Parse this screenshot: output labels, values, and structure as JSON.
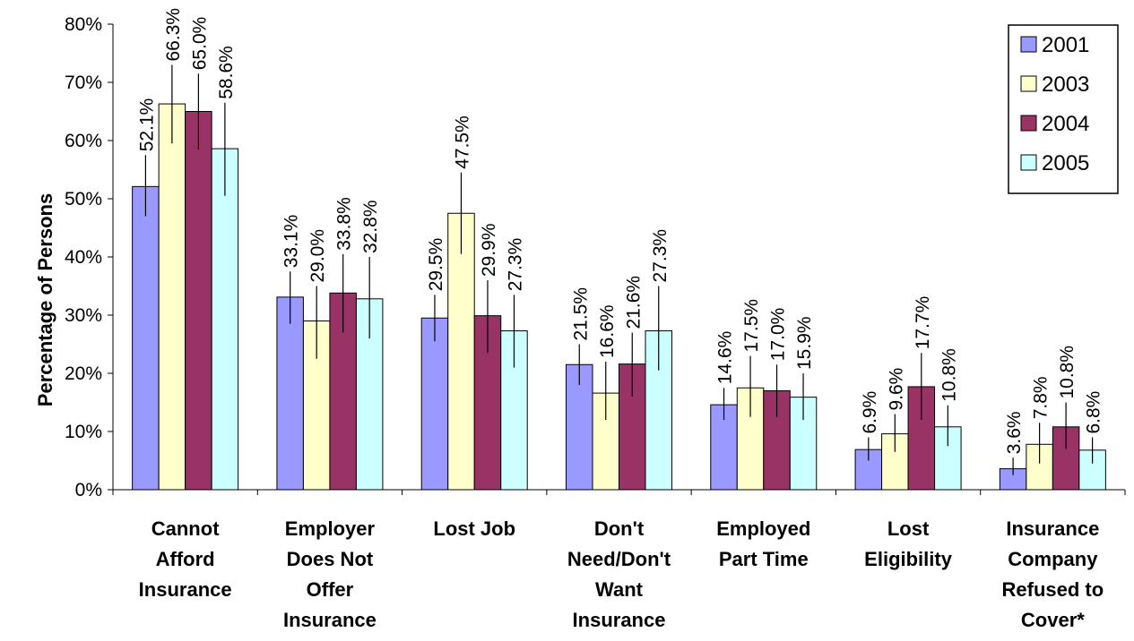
{
  "chart_data": {
    "type": "bar",
    "title": "",
    "xlabel": "",
    "ylabel": "Percentage of Persons",
    "ylim": [
      0,
      80
    ],
    "y_ticks": [
      "0%",
      "10%",
      "20%",
      "30%",
      "40%",
      "50%",
      "60%",
      "70%",
      "80%"
    ],
    "grid": false,
    "legend_position": "top-right",
    "error_bars": true,
    "categories": [
      [
        "Cannot",
        "Afford",
        "Insurance"
      ],
      [
        "Employer",
        "Does Not",
        "Offer",
        "Insurance"
      ],
      [
        "Lost Job"
      ],
      [
        "Don't",
        "Need/Don't",
        "Want",
        "Insurance"
      ],
      [
        "Employed",
        "Part Time"
      ],
      [
        "Lost",
        "Eligibility"
      ],
      [
        "Insurance",
        "Company",
        "Refused to",
        "Cover*"
      ]
    ],
    "series": [
      {
        "name": "2001",
        "color": "#9999ff",
        "values": [
          52.1,
          33.1,
          29.5,
          21.5,
          14.6,
          6.9,
          3.6
        ],
        "labels": [
          "52.1%",
          "33.1%",
          "29.5%",
          "21.5%",
          "14.6%",
          "6.9%",
          "3.6%"
        ],
        "error_low": [
          47.0,
          28.5,
          25.5,
          18.0,
          12.0,
          5.0,
          2.5
        ],
        "error_high": [
          57.5,
          37.5,
          33.5,
          25.0,
          17.5,
          9.0,
          5.5
        ]
      },
      {
        "name": "2003",
        "color": "#ffffcc",
        "values": [
          66.3,
          29.0,
          47.5,
          16.6,
          17.5,
          9.6,
          7.8
        ],
        "labels": [
          "66.3%",
          "29.0%",
          "47.5%",
          "16.6%",
          "17.5%",
          "9.6%",
          "7.8%"
        ],
        "error_low": [
          59.5,
          22.5,
          40.5,
          12.0,
          12.5,
          6.5,
          4.5
        ],
        "error_high": [
          73.0,
          35.0,
          54.5,
          22.0,
          23.0,
          13.0,
          11.5
        ]
      },
      {
        "name": "2004",
        "color": "#993366",
        "values": [
          65.0,
          33.8,
          29.9,
          21.6,
          17.0,
          17.7,
          10.8
        ],
        "labels": [
          "65.0%",
          "33.8%",
          "29.9%",
          "21.6%",
          "17.0%",
          "17.7%",
          "10.8%"
        ],
        "error_low": [
          58.5,
          27.0,
          23.5,
          16.0,
          12.5,
          12.0,
          7.0
        ],
        "error_high": [
          71.5,
          40.5,
          36.0,
          27.0,
          21.5,
          23.5,
          15.0
        ]
      },
      {
        "name": "2005",
        "color": "#ccffff",
        "values": [
          58.6,
          32.8,
          27.3,
          27.3,
          15.9,
          10.8,
          6.8
        ],
        "labels": [
          "58.6%",
          "32.8%",
          "27.3%",
          "27.3%",
          "15.9%",
          "10.8%",
          "6.8%"
        ],
        "error_low": [
          50.5,
          26.0,
          21.0,
          20.5,
          12.0,
          7.5,
          4.5
        ],
        "error_high": [
          66.5,
          40.0,
          33.5,
          35.0,
          20.0,
          14.5,
          9.0
        ]
      }
    ]
  }
}
